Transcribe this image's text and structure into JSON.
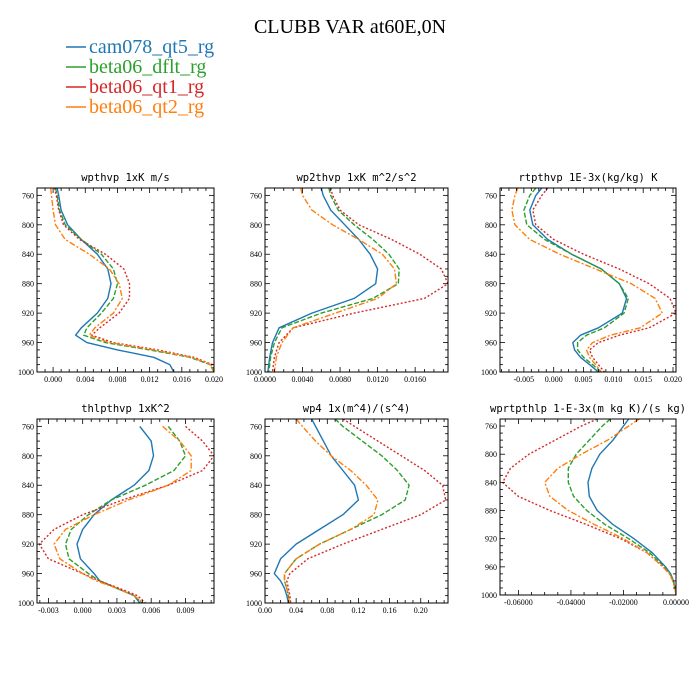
{
  "title": "CLUBB VAR at60E,0N",
  "legend": [
    {
      "label": "cam078_qt5_rg",
      "color": "#1f77b4",
      "dash": ""
    },
    {
      "label": "beta06_dflt_rg",
      "color": "#2ca02c",
      "dash": "5 2"
    },
    {
      "label": "beta06_qt1_rg",
      "color": "#d62728",
      "dash": "2 2"
    },
    {
      "label": "beta06_qt2_rg",
      "color": "#ff7f0e",
      "dash": "6 2 2 2"
    }
  ],
  "chart_data": [
    {
      "type": "line",
      "title": "wpthvp  1xK m/s",
      "xlim": [
        -0.002,
        0.02
      ],
      "ylim": [
        750,
        1000
      ],
      "xticks": [
        0.0,
        0.004,
        0.008,
        0.012,
        0.016,
        0.02
      ],
      "xtick_labels": [
        "0.000",
        "0.004",
        "0.008",
        "0.012",
        "0.016",
        "0.020"
      ],
      "yticks": [
        760,
        800,
        840,
        880,
        920,
        960,
        1000
      ],
      "y": [
        750,
        760,
        780,
        800,
        820,
        840,
        860,
        880,
        900,
        920,
        940,
        950,
        960,
        970,
        980,
        990,
        1000
      ],
      "series": [
        {
          "name": "cam078_qt5_rg",
          "x": [
            0.0005,
            0.0007,
            0.001,
            0.0018,
            0.0035,
            0.0055,
            0.0068,
            0.0072,
            0.0068,
            0.0055,
            0.0035,
            0.0028,
            0.0042,
            0.008,
            0.0125,
            0.0145,
            0.015
          ]
        },
        {
          "name": "beta06_dflt_rg",
          "x": [
            0.0003,
            0.0005,
            0.0008,
            0.0015,
            0.0035,
            0.006,
            0.0075,
            0.008,
            0.0075,
            0.006,
            0.0042,
            0.0038,
            0.0065,
            0.012,
            0.017,
            0.0195,
            0.02
          ]
        },
        {
          "name": "beta06_qt1_rg",
          "x": [
            0.0002,
            0.0004,
            0.0007,
            0.0013,
            0.0033,
            0.0065,
            0.0088,
            0.0095,
            0.0095,
            0.0082,
            0.0058,
            0.0048,
            0.0075,
            0.013,
            0.0175,
            0.0198,
            0.02
          ]
        },
        {
          "name": "beta06_qt2_rg",
          "x": [
            -0.0003,
            -0.0002,
            0.0,
            0.0003,
            0.0015,
            0.0045,
            0.007,
            0.0082,
            0.0086,
            0.0075,
            0.0052,
            0.0045,
            0.007,
            0.0125,
            0.0172,
            0.0196,
            0.02
          ]
        }
      ]
    },
    {
      "type": "line",
      "title": "wp2thvp  1xK m^2/s^2",
      "xlim": [
        0.0,
        0.0195
      ],
      "ylim": [
        750,
        1000
      ],
      "xticks": [
        0.0,
        0.004,
        0.008,
        0.012,
        0.016
      ],
      "xtick_labels": [
        "0.0000",
        "0.0040",
        "0.0080",
        "0.0120",
        "0.0160"
      ],
      "yticks": [
        760,
        800,
        840,
        880,
        920,
        960,
        1000
      ],
      "y": [
        750,
        760,
        780,
        800,
        820,
        840,
        860,
        880,
        900,
        920,
        940,
        960,
        980,
        1000
      ],
      "series": [
        {
          "name": "cam078_qt5_rg",
          "x": [
            0.006,
            0.0062,
            0.007,
            0.0085,
            0.01,
            0.0112,
            0.012,
            0.0118,
            0.0095,
            0.005,
            0.0015,
            0.0008,
            0.0005,
            0.0003
          ]
        },
        {
          "name": "beta06_dflt_rg",
          "x": [
            0.0068,
            0.007,
            0.0078,
            0.0095,
            0.0115,
            0.0132,
            0.0143,
            0.0142,
            0.0115,
            0.006,
            0.0018,
            0.001,
            0.0006,
            0.0004
          ]
        },
        {
          "name": "beta06_qt1_rg",
          "x": [
            0.007,
            0.0072,
            0.008,
            0.01,
            0.0135,
            0.0165,
            0.0188,
            0.0195,
            0.017,
            0.0095,
            0.003,
            0.0015,
            0.001,
            0.0008
          ]
        },
        {
          "name": "beta06_qt2_rg",
          "x": [
            0.0038,
            0.004,
            0.005,
            0.0072,
            0.01,
            0.0125,
            0.0138,
            0.014,
            0.012,
            0.0075,
            0.003,
            0.0018,
            0.0012,
            0.001
          ]
        }
      ]
    },
    {
      "type": "line",
      "title": "rtpthvp  1E-3x(kg/kg) K",
      "xlim": [
        -0.009,
        0.0205
      ],
      "ylim": [
        750,
        1000
      ],
      "xticks": [
        -0.005,
        0.0,
        0.005,
        0.01,
        0.015,
        0.02
      ],
      "xtick_labels": [
        "-0.005",
        "0.000",
        "0.005",
        "0.010",
        "0.015",
        "0.020"
      ],
      "yticks": [
        760,
        800,
        840,
        880,
        920,
        960,
        1000
      ],
      "y": [
        750,
        760,
        780,
        800,
        820,
        840,
        860,
        880,
        900,
        920,
        940,
        950,
        960,
        970,
        980,
        990,
        1000
      ],
      "series": [
        {
          "name": "cam078_qt5_rg",
          "x": [
            -0.002,
            -0.003,
            -0.004,
            -0.0035,
            -0.001,
            0.003,
            0.008,
            0.011,
            0.0122,
            0.0115,
            0.0075,
            0.0045,
            0.0032,
            0.0035,
            0.0045,
            0.006,
            0.0075
          ]
        },
        {
          "name": "beta06_dflt_rg",
          "x": [
            -0.003,
            -0.004,
            -0.005,
            -0.0045,
            -0.0015,
            0.003,
            0.008,
            0.011,
            0.0125,
            0.0118,
            0.0085,
            0.0055,
            0.004,
            0.004,
            0.005,
            0.0065,
            0.008
          ]
        },
        {
          "name": "beta06_qt1_rg",
          "x": [
            -0.001,
            -0.002,
            -0.0035,
            -0.003,
            0.0,
            0.005,
            0.011,
            0.016,
            0.0195,
            0.0205,
            0.016,
            0.011,
            0.0075,
            0.006,
            0.0065,
            0.0075,
            0.0085
          ]
        },
        {
          "name": "beta06_qt2_rg",
          "x": [
            -0.006,
            -0.0065,
            -0.007,
            -0.0065,
            -0.004,
            0.001,
            0.007,
            0.013,
            0.017,
            0.0182,
            0.0145,
            0.0095,
            0.0065,
            0.0055,
            0.006,
            0.007,
            0.008
          ]
        }
      ]
    },
    {
      "type": "line",
      "title": "thlpthvp  1xK^2",
      "xlim": [
        -0.004,
        0.0115
      ],
      "ylim": [
        750,
        1000
      ],
      "xticks": [
        -0.003,
        0.0,
        0.003,
        0.006,
        0.009
      ],
      "xtick_labels": [
        "-0.003",
        "0.000",
        "0.003",
        "0.006",
        "0.009"
      ],
      "yticks": [
        760,
        800,
        840,
        880,
        920,
        960,
        1000
      ],
      "y": [
        760,
        780,
        800,
        820,
        840,
        860,
        880,
        900,
        920,
        940,
        960,
        970,
        980,
        990,
        1000
      ],
      "series": [
        {
          "name": "cam078_qt5_rg",
          "x": [
            0.005,
            0.006,
            0.0062,
            0.0058,
            0.0045,
            0.0025,
            0.001,
            0.0,
            -0.0005,
            -0.0002,
            0.001,
            0.0015,
            0.003,
            0.0045,
            0.005
          ]
        },
        {
          "name": "beta06_dflt_rg",
          "x": [
            0.0075,
            0.0085,
            0.009,
            0.008,
            0.0055,
            0.0025,
            0.0005,
            -0.001,
            -0.0015,
            -0.0012,
            0.0005,
            0.0015,
            0.003,
            0.0045,
            0.0052
          ]
        },
        {
          "name": "beta06_qt1_rg",
          "x": [
            0.009,
            0.0105,
            0.0115,
            0.0105,
            0.0075,
            0.0035,
            0.0,
            -0.0025,
            -0.0038,
            -0.003,
            0.0,
            0.0015,
            0.0032,
            0.0048,
            0.0055
          ]
        },
        {
          "name": "beta06_qt2_rg",
          "x": [
            0.007,
            0.0085,
            0.0095,
            0.0095,
            0.0075,
            0.004,
            0.001,
            -0.0015,
            -0.0025,
            -0.002,
            0.0,
            0.0012,
            0.003,
            0.0045,
            0.0053
          ]
        }
      ]
    },
    {
      "type": "line",
      "title": "wp4  1x(m^4)/(s^4)",
      "xlim": [
        0.0,
        0.235
      ],
      "ylim": [
        750,
        1000
      ],
      "xticks": [
        0.0,
        0.04,
        0.08,
        0.12,
        0.16,
        0.2
      ],
      "xtick_labels": [
        "0.00",
        "0.04",
        "0.08",
        "0.12",
        "0.16",
        "0.20"
      ],
      "yticks": [
        760,
        800,
        840,
        880,
        920,
        960,
        1000
      ],
      "y": [
        750,
        760,
        780,
        800,
        820,
        840,
        860,
        880,
        900,
        920,
        940,
        960,
        970,
        980,
        990,
        1000
      ],
      "series": [
        {
          "name": "cam078_qt5_rg",
          "x": [
            0.06,
            0.065,
            0.075,
            0.085,
            0.1,
            0.115,
            0.12,
            0.1,
            0.07,
            0.04,
            0.02,
            0.012,
            0.02,
            0.025,
            0.028,
            0.03
          ]
        },
        {
          "name": "beta06_dflt_rg",
          "x": [
            0.09,
            0.1,
            0.125,
            0.15,
            0.17,
            0.185,
            0.18,
            0.15,
            0.11,
            0.07,
            0.04,
            0.025,
            0.025,
            0.028,
            0.03,
            0.031
          ]
        },
        {
          "name": "beta06_qt1_rg",
          "x": [
            0.1,
            0.115,
            0.145,
            0.175,
            0.205,
            0.228,
            0.232,
            0.2,
            0.15,
            0.1,
            0.055,
            0.032,
            0.028,
            0.03,
            0.032,
            0.033
          ]
        },
        {
          "name": "beta06_qt2_rg",
          "x": [
            0.04,
            0.048,
            0.065,
            0.085,
            0.11,
            0.13,
            0.145,
            0.14,
            0.11,
            0.07,
            0.04,
            0.025,
            0.025,
            0.028,
            0.03,
            0.031
          ]
        }
      ]
    },
    {
      "type": "line",
      "title": "wprtpthlp  1-E-3x(m kg K)/(s kg)",
      "xlim": [
        -0.067,
        0.0
      ],
      "ylim": [
        750,
        1000
      ],
      "xticks": [
        -0.06,
        -0.04,
        -0.02,
        0.0
      ],
      "xtick_labels": [
        "-0.06000",
        "-0.04000",
        "-0.02000",
        "0.00000"
      ],
      "yticks": [
        760,
        800,
        840,
        880,
        920,
        960,
        1000
      ],
      "y": [
        750,
        760,
        780,
        800,
        820,
        840,
        860,
        880,
        900,
        920,
        940,
        960,
        970,
        980,
        990,
        1000
      ],
      "series": [
        {
          "name": "cam078_qt5_rg",
          "x": [
            -0.018,
            -0.02,
            -0.024,
            -0.029,
            -0.032,
            -0.0335,
            -0.033,
            -0.03,
            -0.024,
            -0.016,
            -0.009,
            -0.004,
            -0.002,
            -0.001,
            -0.0003,
            0.0
          ]
        },
        {
          "name": "beta06_dflt_rg",
          "x": [
            -0.025,
            -0.028,
            -0.033,
            -0.038,
            -0.041,
            -0.041,
            -0.039,
            -0.034,
            -0.027,
            -0.018,
            -0.01,
            -0.0045,
            -0.0022,
            -0.001,
            -0.0003,
            0.0
          ]
        },
        {
          "name": "beta06_qt1_rg",
          "x": [
            -0.03,
            -0.036,
            -0.046,
            -0.056,
            -0.063,
            -0.066,
            -0.06,
            -0.048,
            -0.034,
            -0.021,
            -0.011,
            -0.005,
            -0.0025,
            -0.0012,
            -0.0004,
            0.0
          ]
        },
        {
          "name": "beta06_qt2_rg",
          "x": [
            -0.014,
            -0.018,
            -0.026,
            -0.036,
            -0.045,
            -0.05,
            -0.048,
            -0.041,
            -0.031,
            -0.02,
            -0.011,
            -0.005,
            -0.0025,
            -0.0012,
            -0.0004,
            0.0
          ]
        }
      ]
    }
  ]
}
